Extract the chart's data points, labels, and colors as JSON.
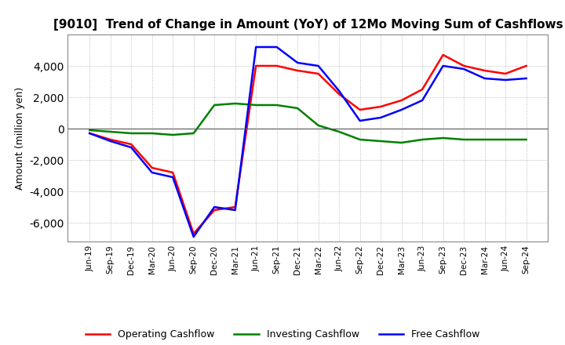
{
  "title": "[9010]  Trend of Change in Amount (YoY) of 12Mo Moving Sum of Cashflows",
  "ylabel": "Amount (million yen)",
  "x_labels": [
    "Jun-19",
    "Sep-19",
    "Dec-19",
    "Mar-20",
    "Jun-20",
    "Sep-20",
    "Dec-20",
    "Mar-21",
    "Jun-21",
    "Sep-21",
    "Dec-21",
    "Mar-22",
    "Jun-22",
    "Sep-22",
    "Dec-22",
    "Mar-23",
    "Jun-23",
    "Sep-23",
    "Dec-23",
    "Mar-24",
    "Jun-24",
    "Sep-24"
  ],
  "operating": [
    -300,
    -700,
    -1000,
    -2500,
    -2800,
    -6700,
    -5200,
    -5000,
    4000,
    4000,
    3700,
    3500,
    2200,
    1200,
    1400,
    1800,
    2500,
    4700,
    4000,
    3700,
    3500,
    4000
  ],
  "investing": [
    -100,
    -200,
    -300,
    -300,
    -400,
    -300,
    1500,
    1600,
    1500,
    1500,
    1300,
    200,
    -200,
    -700,
    -800,
    -900,
    -700,
    -600,
    -700,
    -700,
    -700,
    -700
  ],
  "free": [
    -300,
    -800,
    -1200,
    -2800,
    -3100,
    -6900,
    -5000,
    -5200,
    5200,
    5200,
    4200,
    4000,
    2400,
    500,
    700,
    1200,
    1800,
    4000,
    3800,
    3200,
    3100,
    3200
  ],
  "operating_color": "#ff0000",
  "investing_color": "#008000",
  "free_color": "#0000ff",
  "ylim": [
    -7200,
    6000
  ],
  "yticks": [
    -6000,
    -4000,
    -2000,
    0,
    2000,
    4000
  ],
  "background_color": "#ffffff",
  "grid_color": "#aaaaaa"
}
